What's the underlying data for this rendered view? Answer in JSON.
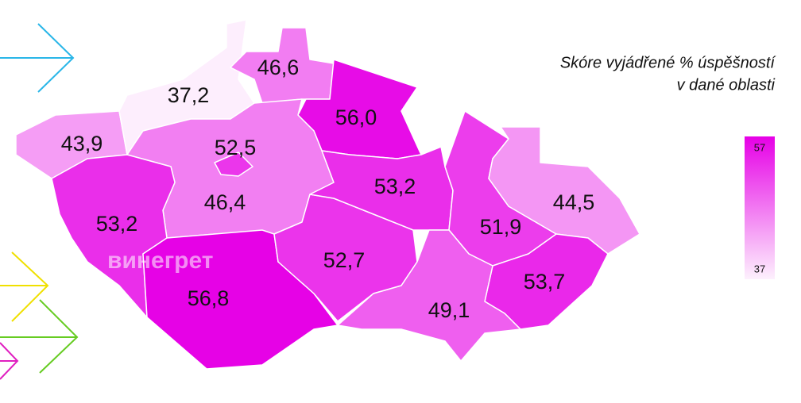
{
  "title_lines": [
    "Skóre vyjádřené % úspěšností",
    "v dané oblasti"
  ],
  "watermark": "винегрет",
  "legend": {
    "max": 57,
    "min": 37,
    "max_color": "#e600e6",
    "min_color": "#fdf0fd"
  },
  "regions": [
    {
      "value": 43.9,
      "label": "43,9"
    },
    {
      "value": 37.2,
      "label": "37,2"
    },
    {
      "value": 46.6,
      "label": "46,6"
    },
    {
      "value": 56.0,
      "label": "56,0"
    },
    {
      "value": 46.4,
      "label": "46,4"
    },
    {
      "value": 52.5,
      "label": "52,5"
    },
    {
      "value": 53.2,
      "label": "53,2"
    },
    {
      "value": 56.8,
      "label": "56,8"
    },
    {
      "value": 52.7,
      "label": "52,7"
    },
    {
      "value": 53.2,
      "label": "53,2"
    },
    {
      "value": 51.9,
      "label": "51,9"
    },
    {
      "value": 44.5,
      "label": "44,5"
    },
    {
      "value": 53.7,
      "label": "53,7"
    },
    {
      "value": 49.1,
      "label": "49,1"
    }
  ]
}
